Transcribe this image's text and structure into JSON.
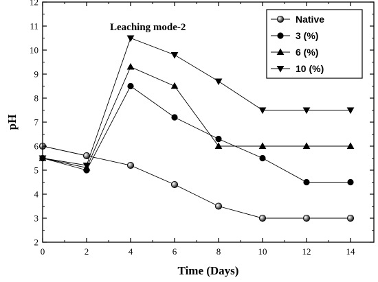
{
  "chart_data": {
    "type": "line",
    "annotation": "Leaching mode-2",
    "xlabel": "Time (Days)",
    "ylabel": "pH",
    "xlim": [
      0,
      14
    ],
    "ylim": [
      2,
      12
    ],
    "x_ticks": [
      "0",
      "2",
      "4",
      "6",
      "8",
      "10",
      "12",
      "14"
    ],
    "y_ticks": [
      "2",
      "3",
      "4",
      "5",
      "6",
      "7",
      "8",
      "9",
      "10",
      "11",
      "12"
    ],
    "grid": false,
    "legend_position": "top-right",
    "x": [
      0,
      2,
      4,
      6,
      8,
      10,
      12,
      14
    ],
    "series": [
      {
        "name": "Native",
        "marker": "half-filled-circle",
        "values": [
          6.0,
          5.6,
          5.2,
          4.4,
          3.5,
          3.0,
          3.0,
          3.0
        ]
      },
      {
        "name": "3 (%)",
        "marker": "filled-circle",
        "values": [
          5.5,
          5.0,
          8.5,
          7.2,
          6.3,
          5.5,
          4.5,
          4.5
        ]
      },
      {
        "name": "6 (%)",
        "marker": "triangle-up",
        "values": [
          5.5,
          5.1,
          9.3,
          8.5,
          6.0,
          6.0,
          6.0,
          6.0
        ]
      },
      {
        "name": "10 (%)",
        "marker": "triangle-down",
        "values": [
          5.5,
          5.2,
          10.5,
          9.8,
          8.7,
          7.5,
          7.5,
          7.5
        ]
      }
    ],
    "line_color": "#000000"
  }
}
